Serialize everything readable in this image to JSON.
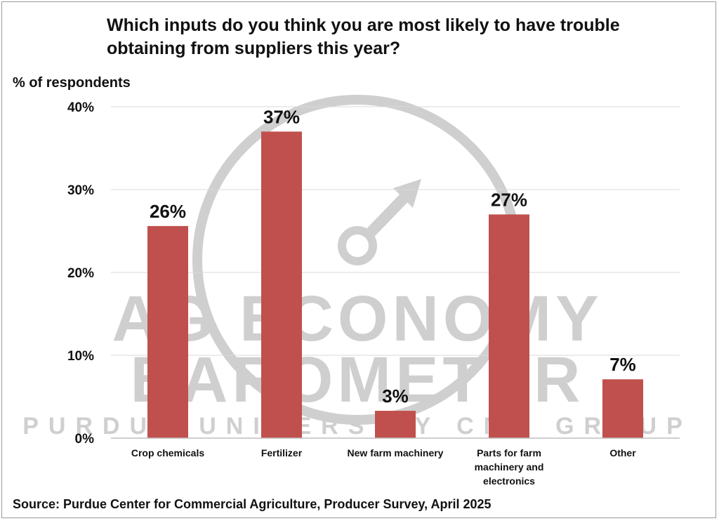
{
  "watermark": {
    "line1": "AG ECONOMY",
    "line2": "BAROMETER",
    "line3": "PURDUE UNIVERSITY CME GROUP"
  },
  "colors": {
    "bar": "#c0504d",
    "grid": "#d9d9d9",
    "watermark": "#cfcfcf"
  },
  "chart_data": {
    "type": "bar",
    "title": "Which inputs do you think you are most likely to have trouble obtaining from suppliers this year?",
    "ylabel": "% of respondents",
    "xlabel": "",
    "categories": [
      [
        "Crop chemicals"
      ],
      [
        "Fertilizer"
      ],
      [
        "New farm machinery"
      ],
      [
        "Parts for farm",
        "machinery and",
        "electronics"
      ],
      [
        "Other"
      ]
    ],
    "values": [
      25.6,
      37,
      3.3,
      27,
      7.1
    ],
    "data_labels": [
      "26%",
      "37%",
      "3%",
      "27%",
      "7%"
    ],
    "ylim": [
      0,
      40
    ],
    "yticks": [
      0,
      10,
      20,
      30,
      40
    ],
    "ytick_labels": [
      "0%",
      "10%",
      "20%",
      "30%",
      "40%"
    ],
    "grid": true,
    "legend": "none",
    "source": "Source: Purdue Center for Commercial Agriculture, Producer Survey, April 2025"
  }
}
